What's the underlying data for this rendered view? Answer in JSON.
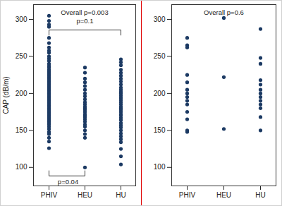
{
  "chart_data": [
    {
      "type": "scatter",
      "title": "Overall p=0.003",
      "y_label": "CAP (dB/m)",
      "categories": [
        "PHIV",
        "HEU",
        "HU"
      ],
      "values": [
        [
          305,
          298,
          293,
          290,
          275,
          268,
          262,
          258,
          255,
          250,
          247,
          244,
          240,
          237,
          235,
          232,
          230,
          228,
          226,
          224,
          222,
          220,
          218,
          216,
          214,
          212,
          210,
          208,
          206,
          204,
          202,
          200,
          198,
          196,
          194,
          192,
          190,
          188,
          186,
          184,
          182,
          180,
          178,
          176,
          174,
          172,
          170,
          168,
          166,
          164,
          162,
          160,
          158,
          155,
          152,
          148,
          145,
          140,
          135,
          126
        ],
        [
          235,
          228,
          220,
          215,
          210,
          205,
          200,
          196,
          192,
          188,
          185,
          182,
          180,
          178,
          175,
          172,
          170,
          168,
          165,
          162,
          158,
          155,
          150,
          145,
          140,
          100
        ],
        [
          246,
          242,
          238,
          232,
          228,
          224,
          220,
          216,
          212,
          208,
          205,
          202,
          200,
          197,
          194,
          191,
          188,
          185,
          182,
          180,
          178,
          175,
          172,
          170,
          167,
          164,
          160,
          157,
          154,
          150,
          146,
          142,
          138,
          134,
          125,
          115,
          104
        ]
      ],
      "color": "#1c3a63",
      "ylim": [
        75,
        320
      ],
      "yticks": [
        100,
        150,
        200,
        250,
        300
      ],
      "brackets": [
        {
          "label": "p=0.1",
          "from": "PHIV",
          "to": "HU",
          "side": "top"
        },
        {
          "label": "p=0.04",
          "from": "PHIV",
          "to": "HEU",
          "side": "bottom"
        }
      ]
    },
    {
      "type": "scatter",
      "title": "Overall p=0.6",
      "categories": [
        "PHIV",
        "HEU",
        "HU"
      ],
      "values": [
        [
          275,
          265,
          262,
          225,
          215,
          205,
          200,
          195,
          190,
          185,
          175,
          165,
          150,
          148
        ],
        [
          302,
          222,
          152
        ],
        [
          287,
          248,
          240,
          218,
          212,
          205,
          200,
          195,
          190,
          185,
          180,
          168,
          150
        ]
      ],
      "color": "#1c3a63",
      "ylim": [
        75,
        320
      ],
      "yticks": [
        100,
        150,
        200,
        250,
        300
      ]
    }
  ]
}
